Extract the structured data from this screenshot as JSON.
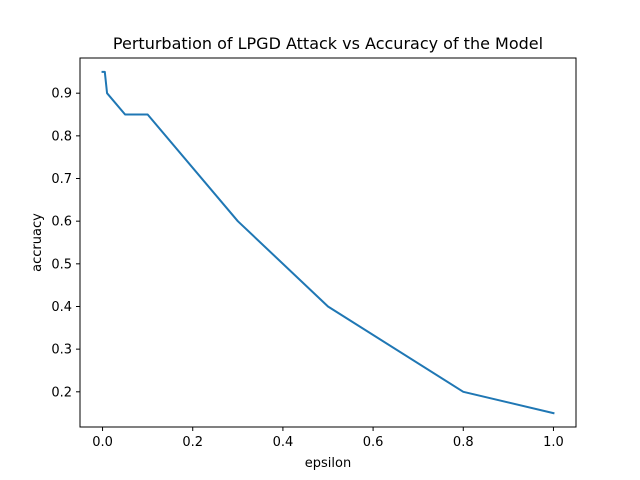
{
  "chart_data": {
    "type": "line",
    "title": "Perturbation of LPGD Attack vs Accuracy of the Model",
    "xlabel": "epsilon",
    "ylabel": "accruacy",
    "xlim": [
      -0.05,
      1.05
    ],
    "ylim": [
      0.1175,
      0.9825
    ],
    "xticks": [
      0.0,
      0.2,
      0.4,
      0.6,
      0.8,
      1.0
    ],
    "xtick_labels": [
      "0.0",
      "0.2",
      "0.4",
      "0.6",
      "0.8",
      "1.0"
    ],
    "yticks": [
      0.2,
      0.3,
      0.4,
      0.5,
      0.6,
      0.7,
      0.8,
      0.9
    ],
    "ytick_labels": [
      "0.2",
      "0.3",
      "0.4",
      "0.5",
      "0.6",
      "0.7",
      "0.8",
      "0.9"
    ],
    "grid": false,
    "legend": "none",
    "series": [
      {
        "color": "#1f77b4",
        "x": [
          0.0,
          0.005,
          0.01,
          0.05,
          0.1,
          0.3,
          0.5,
          0.8,
          1.0
        ],
        "y": [
          0.95,
          0.95,
          0.9,
          0.85,
          0.85,
          0.6,
          0.4,
          0.2,
          0.15
        ]
      }
    ]
  }
}
